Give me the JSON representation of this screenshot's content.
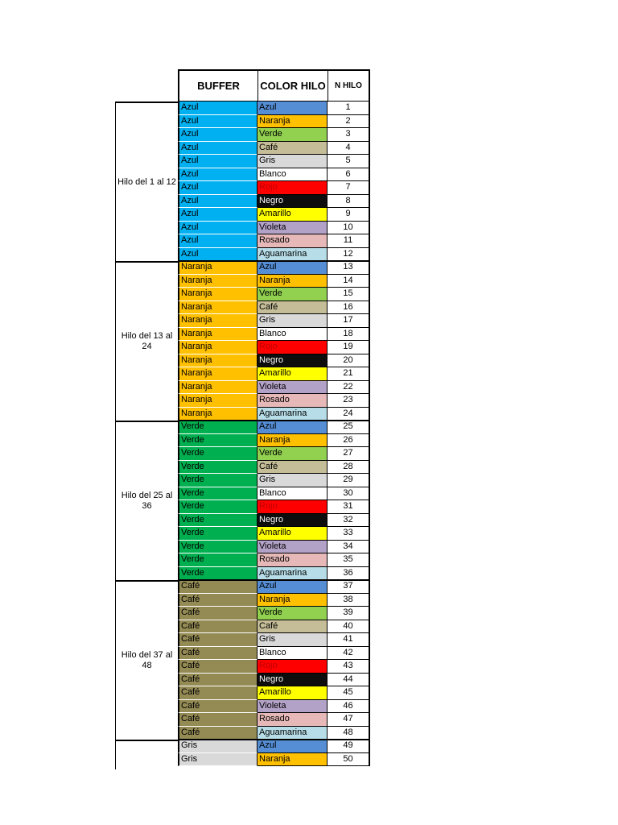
{
  "headers": {
    "buffer": "BUFFER",
    "color": "COLOR HILO",
    "number": "N HILO"
  },
  "groups": [
    {
      "label": "Hilo del 1 al 12",
      "buffer": "Azul",
      "color_hex": "#00B0F0",
      "start": 1,
      "count": 12
    },
    {
      "label": "Hilo del 13 al 24",
      "buffer": "Naranja",
      "color_hex": "#FFC000",
      "start": 13,
      "count": 12
    },
    {
      "label": "Hilo del 25 al 36",
      "buffer": "Verde",
      "color_hex": "#00B050",
      "start": 25,
      "count": 12
    },
    {
      "label": "Hilo del 37 al 48",
      "buffer": "Café",
      "color_hex": "#948A54",
      "start": 37,
      "count": 12
    },
    {
      "label": "",
      "buffer": "Gris",
      "color_hex": "#D9D9D9",
      "start": 49,
      "count": 2
    }
  ],
  "fiber_colors": [
    {
      "name": "Azul",
      "hex": "#558ED5",
      "text": "#000000"
    },
    {
      "name": "Naranja",
      "hex": "#FFC000",
      "text": "#000000"
    },
    {
      "name": "Verde",
      "hex": "#92D050",
      "text": "#000000"
    },
    {
      "name": "Café",
      "hex": "#C4BD97",
      "text": "#000000"
    },
    {
      "name": "Gris",
      "hex": "#D9D9D9",
      "text": "#000000"
    },
    {
      "name": "Blanco",
      "hex": "#FFFFFF",
      "text": "#000000"
    },
    {
      "name": "Rojo",
      "hex": "#FF0000",
      "text": "#C00000"
    },
    {
      "name": "Negro",
      "hex": "#0D0D0D",
      "text": "#FFFFFF"
    },
    {
      "name": "Amarillo",
      "hex": "#FFFF00",
      "text": "#000000"
    },
    {
      "name": "Violeta",
      "hex": "#B3A2C7",
      "text": "#000000"
    },
    {
      "name": "Rosado",
      "hex": "#E6B9B8",
      "text": "#000000"
    },
    {
      "name": "Aguamarina",
      "hex": "#B7DEE8",
      "text": "#000000"
    }
  ],
  "rows": [
    {
      "buffer": "Azul",
      "color": "Azul",
      "n": "1"
    },
    {
      "buffer": "Azul",
      "color": "Naranja",
      "n": "2"
    },
    {
      "buffer": "Azul",
      "color": "Verde",
      "n": "3"
    },
    {
      "buffer": "Azul",
      "color": "Café",
      "n": "4"
    },
    {
      "buffer": "Azul",
      "color": "Gris",
      "n": "5"
    },
    {
      "buffer": "Azul",
      "color": "Blanco",
      "n": "6"
    },
    {
      "buffer": "Azul",
      "color": "Rojo",
      "n": "7"
    },
    {
      "buffer": "Azul",
      "color": "Negro",
      "n": "8"
    },
    {
      "buffer": "Azul",
      "color": "Amarillo",
      "n": "9"
    },
    {
      "buffer": "Azul",
      "color": "Violeta",
      "n": "10"
    },
    {
      "buffer": "Azul",
      "color": "Rosado",
      "n": "11"
    },
    {
      "buffer": "Azul",
      "color": "Aguamarina",
      "n": "12"
    },
    {
      "buffer": "Naranja",
      "color": "Azul",
      "n": "13"
    },
    {
      "buffer": "Naranja",
      "color": "Naranja",
      "n": "14"
    },
    {
      "buffer": "Naranja",
      "color": "Verde",
      "n": "15"
    },
    {
      "buffer": "Naranja",
      "color": "Café",
      "n": "16"
    },
    {
      "buffer": "Naranja",
      "color": "Gris",
      "n": "17"
    },
    {
      "buffer": "Naranja",
      "color": "Blanco",
      "n": "18"
    },
    {
      "buffer": "Naranja",
      "color": "Rojo",
      "n": "19"
    },
    {
      "buffer": "Naranja",
      "color": "Negro",
      "n": "20"
    },
    {
      "buffer": "Naranja",
      "color": "Amarillo",
      "n": "21"
    },
    {
      "buffer": "Naranja",
      "color": "Violeta",
      "n": "22"
    },
    {
      "buffer": "Naranja",
      "color": "Rosado",
      "n": "23"
    },
    {
      "buffer": "Naranja",
      "color": "Aguamarina",
      "n": "24"
    },
    {
      "buffer": "Verde",
      "color": "Azul",
      "n": "25"
    },
    {
      "buffer": "Verde",
      "color": "Naranja",
      "n": "26"
    },
    {
      "buffer": "Verde",
      "color": "Verde",
      "n": "27"
    },
    {
      "buffer": "Verde",
      "color": "Café",
      "n": "28"
    },
    {
      "buffer": "Verde",
      "color": "Gris",
      "n": "29"
    },
    {
      "buffer": "Verde",
      "color": "Blanco",
      "n": "30"
    },
    {
      "buffer": "Verde",
      "color": "Rojo",
      "n": "31"
    },
    {
      "buffer": "Verde",
      "color": "Negro",
      "n": "32"
    },
    {
      "buffer": "Verde",
      "color": "Amarillo",
      "n": "33"
    },
    {
      "buffer": "Verde",
      "color": "Violeta",
      "n": "34"
    },
    {
      "buffer": "Verde",
      "color": "Rosado",
      "n": "35"
    },
    {
      "buffer": "Verde",
      "color": "Aguamarina",
      "n": "36"
    },
    {
      "buffer": "Café",
      "color": "Azul",
      "n": "37"
    },
    {
      "buffer": "Café",
      "color": "Naranja",
      "n": "38"
    },
    {
      "buffer": "Café",
      "color": "Verde",
      "n": "39"
    },
    {
      "buffer": "Café",
      "color": "Café",
      "n": "40"
    },
    {
      "buffer": "Café",
      "color": "Gris",
      "n": "41"
    },
    {
      "buffer": "Café",
      "color": "Blanco",
      "n": "42"
    },
    {
      "buffer": "Café",
      "color": "Rojo",
      "n": "43"
    },
    {
      "buffer": "Café",
      "color": "Negro",
      "n": "44"
    },
    {
      "buffer": "Café",
      "color": "Amarillo",
      "n": "45"
    },
    {
      "buffer": "Café",
      "color": "Violeta",
      "n": "46"
    },
    {
      "buffer": "Café",
      "color": "Rosado",
      "n": "47"
    },
    {
      "buffer": "Café",
      "color": "Aguamarina",
      "n": "48"
    },
    {
      "buffer": "Gris",
      "color": "Azul",
      "n": "49"
    },
    {
      "buffer": "Gris",
      "color": "Naranja",
      "n": "50"
    }
  ]
}
